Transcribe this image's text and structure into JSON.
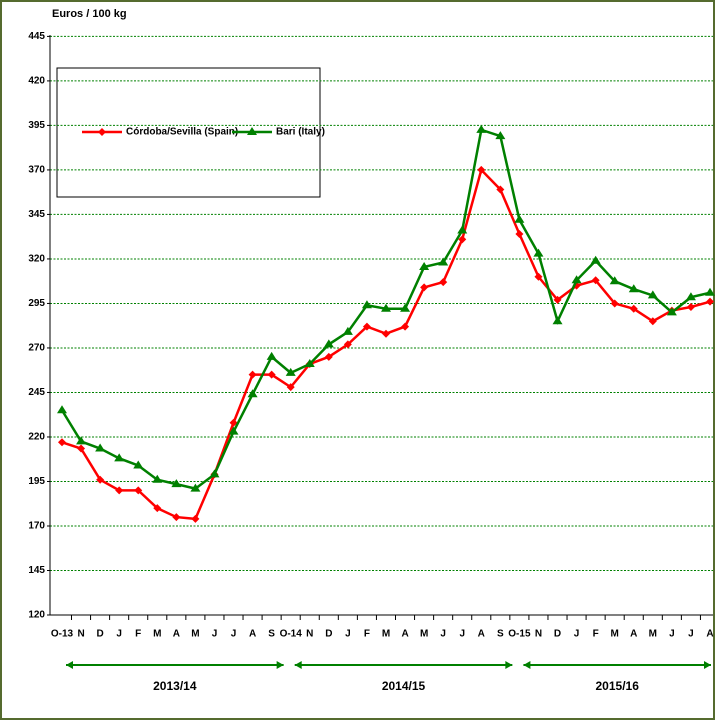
{
  "chart_data": {
    "type": "line",
    "y_axis_label": "Euros / 100 kg",
    "categories": [
      "O-13",
      "N",
      "D",
      "J",
      "F",
      "M",
      "A",
      "M",
      "J",
      "J",
      "A",
      "S",
      "O-14",
      "N",
      "D",
      "J",
      "F",
      "M",
      "A",
      "M",
      "J",
      "J",
      "A",
      "S",
      "O-15",
      "N",
      "D",
      "J",
      "F",
      "M",
      "A",
      "M",
      "J",
      "J",
      "A"
    ],
    "periods": [
      "2013/14",
      "2014/15",
      "2015/16"
    ],
    "series": [
      {
        "name": "Córdoba/Sevilla (Spain)",
        "color": "#ff0000",
        "values": [
          217,
          213.5,
          196,
          190,
          190,
          180,
          175,
          174,
          199,
          228,
          255,
          255,
          248,
          261,
          265,
          272,
          282,
          278,
          282,
          304,
          307,
          331,
          370,
          359,
          334,
          310,
          297,
          305,
          308,
          295,
          292,
          285,
          291,
          293,
          296
        ]
      },
      {
        "name": "Bari (Italy)",
        "color": "#008000",
        "values": [
          235,
          217.5,
          213.5,
          208,
          204,
          196,
          193.5,
          191,
          199,
          223,
          244,
          265,
          256,
          261,
          272,
          279,
          294,
          292,
          292,
          315.5,
          318,
          336,
          392.5,
          389,
          342,
          323,
          285,
          308,
          319,
          307.5,
          303,
          299.5,
          290,
          298.5,
          301
        ]
      }
    ],
    "ylim": [
      120,
      450
    ],
    "yticks": [
      120,
      145,
      170,
      195,
      220,
      245,
      270,
      295,
      320,
      345,
      370,
      395,
      420,
      445
    ],
    "grid": true
  }
}
